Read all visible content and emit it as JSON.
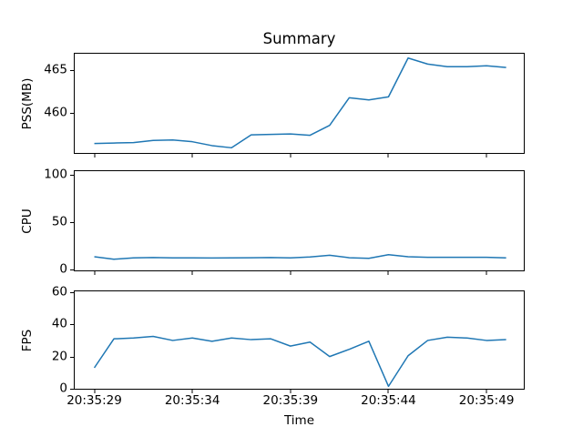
{
  "figure": {
    "background": "#ffffff",
    "spine_color": "#000000"
  },
  "chart_data": {
    "type": "line",
    "title": "Summary",
    "xlabel": "Time",
    "line_color": "#1f77b4",
    "line_width": 1.5,
    "grid": false,
    "legend": "none",
    "x_tick_labels": [
      "20:35:29",
      "20:35:34",
      "20:35:39",
      "20:35:44",
      "20:35:49"
    ],
    "x_tick_seconds": [
      29,
      34,
      39,
      44,
      49
    ],
    "xlim_seconds": [
      28.0,
      50.9
    ],
    "times": [
      "20:35:29",
      "20:35:30",
      "20:35:31",
      "20:35:32",
      "20:35:33",
      "20:35:34",
      "20:35:35",
      "20:35:36",
      "20:35:37",
      "20:35:38",
      "20:35:39",
      "20:35:40",
      "20:35:41",
      "20:35:42",
      "20:35:43",
      "20:35:44",
      "20:35:45",
      "20:35:46",
      "20:35:47",
      "20:35:48",
      "20:35:49",
      "20:35:50"
    ],
    "x_seconds": [
      29,
      30,
      31,
      32,
      33,
      34,
      35,
      36,
      37,
      38,
      39,
      40,
      41,
      42,
      43,
      44,
      45,
      46,
      47,
      48,
      49,
      50
    ],
    "subplots": [
      {
        "name": "pss",
        "ylabel": "PSS(MB)",
        "yticks": [
          460,
          465
        ],
        "ylim": [
          455.4,
          466.9
        ],
        "values": [
          456.5,
          456.55,
          456.6,
          456.85,
          456.9,
          456.7,
          456.25,
          456.0,
          457.5,
          457.55,
          457.6,
          457.45,
          458.6,
          461.8,
          461.55,
          461.9,
          466.4,
          465.7,
          465.4,
          465.4,
          465.5,
          465.3
        ]
      },
      {
        "name": "cpu",
        "ylabel": "CPU",
        "yticks": [
          0,
          50,
          100
        ],
        "ylim": [
          -1,
          104
        ],
        "values": [
          13.5,
          10.8,
          12.3,
          12.6,
          12.2,
          12.2,
          12.1,
          12.2,
          12.4,
          12.6,
          12.3,
          13.2,
          15.0,
          12.4,
          11.8,
          15.6,
          13.5,
          12.9,
          12.8,
          12.8,
          12.9,
          12.3
        ]
      },
      {
        "name": "fps",
        "ylabel": "FPS",
        "yticks": [
          0,
          20,
          40,
          60
        ],
        "ylim": [
          0,
          60.5
        ],
        "values": [
          13,
          31,
          31.5,
          32.5,
          30,
          31.5,
          29.5,
          31.5,
          30.5,
          31,
          26.5,
          29,
          20,
          24.5,
          29.5,
          1.5,
          20.5,
          30,
          32,
          31.5,
          30,
          30.5
        ]
      }
    ]
  }
}
